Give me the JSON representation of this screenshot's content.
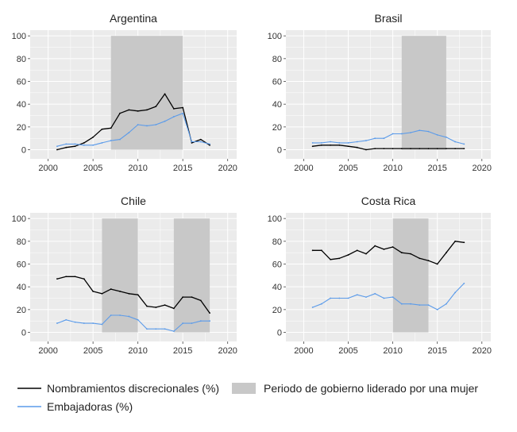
{
  "colors": {
    "panel_bg": "#ebebeb",
    "grid": "#ffffff",
    "shade": "#c8c8c8",
    "discretionary": "#000000",
    "ambassadors": "#5b9bea"
  },
  "legend": {
    "discretionary_label": "Nombramientos discrecionales (%)",
    "ambassadors_label": "Embajadoras (%)",
    "period_label": "Periodo de gobierno liderado por una mujer"
  },
  "chart_data": [
    {
      "type": "line",
      "title": "Argentina",
      "xlim": [
        1998,
        2021
      ],
      "ylim": [
        -8,
        105
      ],
      "xticks": [
        2000,
        2005,
        2010,
        2015,
        2020
      ],
      "yticks": [
        0,
        20,
        40,
        60,
        80,
        100
      ],
      "shaded_periods": [
        [
          2007,
          2015
        ]
      ],
      "series": [
        {
          "name": "Nombramientos discrecionales (%)",
          "color_key": "discretionary",
          "x": [
            2001,
            2002,
            2003,
            2004,
            2005,
            2006,
            2007,
            2008,
            2009,
            2010,
            2011,
            2012,
            2013,
            2014,
            2015,
            2016,
            2017,
            2018
          ],
          "values": [
            0,
            2,
            3,
            6,
            11,
            18,
            19,
            32,
            35,
            34,
            35,
            38,
            49,
            36,
            37,
            6,
            9,
            4
          ]
        },
        {
          "name": "Embajadoras (%)",
          "color_key": "ambassadors",
          "x": [
            2001,
            2002,
            2003,
            2004,
            2005,
            2006,
            2007,
            2008,
            2009,
            2010,
            2011,
            2012,
            2013,
            2014,
            2015,
            2016,
            2017,
            2018
          ],
          "values": [
            3,
            5,
            5,
            4,
            4,
            6,
            8,
            9,
            15,
            22,
            21,
            22,
            25,
            29,
            32,
            7,
            7,
            5
          ]
        }
      ]
    },
    {
      "type": "line",
      "title": "Brasil",
      "xlim": [
        1998,
        2021
      ],
      "ylim": [
        -8,
        105
      ],
      "xticks": [
        2000,
        2005,
        2010,
        2015,
        2020
      ],
      "yticks": [
        0,
        20,
        40,
        60,
        80,
        100
      ],
      "shaded_periods": [
        [
          2011,
          2016
        ]
      ],
      "series": [
        {
          "name": "Nombramientos discrecionales (%)",
          "color_key": "discretionary",
          "x": [
            2001,
            2002,
            2003,
            2004,
            2005,
            2006,
            2007,
            2008,
            2009,
            2010,
            2011,
            2012,
            2013,
            2014,
            2015,
            2016,
            2017,
            2018
          ],
          "values": [
            3,
            4,
            4,
            4,
            3,
            2,
            0,
            1,
            1,
            1,
            1,
            1,
            1,
            1,
            1,
            1,
            1,
            1
          ]
        },
        {
          "name": "Embajadoras (%)",
          "color_key": "ambassadors",
          "x": [
            2001,
            2002,
            2003,
            2004,
            2005,
            2006,
            2007,
            2008,
            2009,
            2010,
            2011,
            2012,
            2013,
            2014,
            2015,
            2016,
            2017,
            2018
          ],
          "values": [
            6,
            6,
            7,
            6,
            6,
            7,
            8,
            10,
            10,
            14,
            14,
            15,
            17,
            16,
            13,
            11,
            7,
            5
          ]
        }
      ]
    },
    {
      "type": "line",
      "title": "Chile",
      "xlim": [
        1998,
        2021
      ],
      "ylim": [
        -8,
        105
      ],
      "xticks": [
        2000,
        2005,
        2010,
        2015,
        2020
      ],
      "yticks": [
        0,
        20,
        40,
        60,
        80,
        100
      ],
      "shaded_periods": [
        [
          2006,
          2010
        ],
        [
          2014,
          2018
        ]
      ],
      "series": [
        {
          "name": "Nombramientos discrecionales (%)",
          "color_key": "discretionary",
          "x": [
            2001,
            2002,
            2003,
            2004,
            2005,
            2006,
            2007,
            2008,
            2009,
            2010,
            2011,
            2012,
            2013,
            2014,
            2015,
            2016,
            2017,
            2018
          ],
          "values": [
            47,
            49,
            49,
            47,
            36,
            34,
            38,
            36,
            34,
            33,
            23,
            22,
            24,
            21,
            31,
            31,
            28,
            17
          ]
        },
        {
          "name": "Embajadoras (%)",
          "color_key": "ambassadors",
          "x": [
            2001,
            2002,
            2003,
            2004,
            2005,
            2006,
            2007,
            2008,
            2009,
            2010,
            2011,
            2012,
            2013,
            2014,
            2015,
            2016,
            2017,
            2018
          ],
          "values": [
            8,
            11,
            9,
            8,
            8,
            7,
            15,
            15,
            14,
            11,
            3,
            3,
            3,
            1,
            8,
            8,
            10,
            10
          ]
        }
      ]
    },
    {
      "type": "line",
      "title": "Costa Rica",
      "xlim": [
        1998,
        2021
      ],
      "ylim": [
        -8,
        105
      ],
      "xticks": [
        2000,
        2005,
        2010,
        2015,
        2020
      ],
      "yticks": [
        0,
        20,
        40,
        60,
        80,
        100
      ],
      "shaded_periods": [
        [
          2010,
          2014
        ]
      ],
      "series": [
        {
          "name": "Nombramientos discrecionales (%)",
          "color_key": "discretionary",
          "x": [
            2001,
            2002,
            2003,
            2004,
            2005,
            2006,
            2007,
            2008,
            2009,
            2010,
            2011,
            2012,
            2013,
            2014,
            2015,
            2016,
            2017,
            2018
          ],
          "values": [
            72,
            72,
            64,
            65,
            68,
            72,
            69,
            76,
            73,
            75,
            70,
            69,
            65,
            63,
            60,
            70,
            80,
            79
          ]
        },
        {
          "name": "Embajadoras (%)",
          "color_key": "ambassadors",
          "x": [
            2001,
            2002,
            2003,
            2004,
            2005,
            2006,
            2007,
            2008,
            2009,
            2010,
            2011,
            2012,
            2013,
            2014,
            2015,
            2016,
            2017,
            2018
          ],
          "values": [
            22,
            25,
            30,
            30,
            30,
            33,
            31,
            34,
            30,
            31,
            25,
            25,
            24,
            24,
            20,
            25,
            35,
            43
          ]
        }
      ]
    }
  ]
}
